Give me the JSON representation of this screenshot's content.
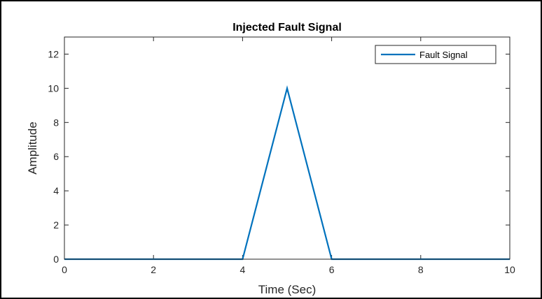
{
  "chart_data": {
    "type": "line",
    "title": "Injected Fault Signal",
    "xlabel": "Time (Sec)",
    "ylabel": "Amplitude",
    "xlim": [
      0,
      10
    ],
    "ylim": [
      0,
      13
    ],
    "xticks": [
      0,
      2,
      4,
      6,
      8,
      10
    ],
    "yticks": [
      0,
      2,
      4,
      6,
      8,
      10,
      12
    ],
    "grid": false,
    "legend_position": "top-right",
    "series": [
      {
        "name": "Fault Signal",
        "color": "#0072BD",
        "x": [
          0,
          4,
          5,
          6,
          10
        ],
        "y": [
          0,
          0,
          10,
          0,
          0
        ]
      }
    ]
  }
}
